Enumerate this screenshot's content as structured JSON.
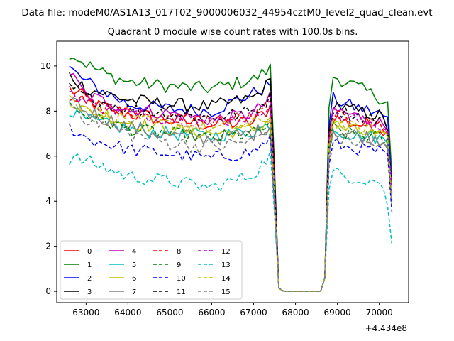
{
  "chart_data": {
    "type": "line",
    "suptitle": "Data file: modeM0/AS1A13_017T02_9000006032_44954cztM0_level2_quad_clean.evt",
    "title": "Quadrant 0 module wise count rates with 100.0s bins.",
    "xlabel": "",
    "ylabel": "",
    "x_offset_label": "+4.434e8",
    "xlim": [
      62300,
      70700
    ],
    "ylim": [
      -0.5,
      11.1
    ],
    "x_ticks": [
      63000,
      64000,
      65000,
      66000,
      67000,
      68000,
      69000,
      70000
    ],
    "x_tick_labels": [
      "63000",
      "64000",
      "65000",
      "66000",
      "67000",
      "68000",
      "69000",
      "70000"
    ],
    "y_ticks": [
      0,
      2,
      4,
      6,
      8,
      10
    ],
    "y_tick_labels": [
      "0",
      "2",
      "4",
      "6",
      "8",
      "10"
    ],
    "grid": false,
    "legend_placement": "lower-left",
    "legend_columns": 4,
    "series": [
      {
        "name": "0",
        "color": "#ff0000",
        "dash": "solid",
        "segA": [
          [
            62600,
            9.0
          ],
          [
            63300,
            8.2
          ],
          [
            64000,
            7.9
          ],
          [
            65000,
            7.6
          ],
          [
            66000,
            7.4
          ],
          [
            67000,
            7.5
          ],
          [
            67400,
            8.2
          ]
        ],
        "segB": [
          [
            68850,
            7.8
          ],
          [
            69200,
            7.5
          ],
          [
            70000,
            7.3
          ],
          [
            70300,
            6.9
          ]
        ],
        "noise": 0.35
      },
      {
        "name": "1",
        "color": "#008000",
        "dash": "solid",
        "segA": [
          [
            62600,
            10.6
          ],
          [
            63000,
            10.1
          ],
          [
            63500,
            9.6
          ],
          [
            64000,
            9.3
          ],
          [
            65000,
            9.1
          ],
          [
            66000,
            9.0
          ],
          [
            67000,
            9.4
          ],
          [
            67400,
            9.9
          ]
        ],
        "segB": [
          [
            68850,
            9.6
          ],
          [
            69200,
            9.3
          ],
          [
            70000,
            8.6
          ],
          [
            70300,
            8.3
          ]
        ],
        "noise": 0.3
      },
      {
        "name": "2",
        "color": "#0000ff",
        "dash": "solid",
        "segA": [
          [
            62600,
            9.9
          ],
          [
            63000,
            9.3
          ],
          [
            64000,
            8.3
          ],
          [
            65000,
            8.1
          ],
          [
            66000,
            8.0
          ],
          [
            67000,
            8.8
          ],
          [
            67400,
            9.2
          ]
        ],
        "segB": [
          [
            68850,
            8.6
          ],
          [
            69200,
            8.3
          ],
          [
            70000,
            7.9
          ],
          [
            70300,
            7.5
          ]
        ],
        "noise": 0.3
      },
      {
        "name": "3",
        "color": "#000000",
        "dash": "solid",
        "segA": [
          [
            62600,
            9.6
          ],
          [
            63000,
            9.0
          ],
          [
            64000,
            8.5
          ],
          [
            65000,
            8.3
          ],
          [
            66000,
            8.2
          ],
          [
            67000,
            8.6
          ],
          [
            67400,
            9.3
          ]
        ],
        "segB": [
          [
            68850,
            8.4
          ],
          [
            69200,
            8.1
          ],
          [
            70000,
            7.8
          ],
          [
            70300,
            7.0
          ]
        ],
        "noise": 0.3
      },
      {
        "name": "4",
        "color": "#c000c0",
        "dash": "solid",
        "segA": [
          [
            62600,
            9.7
          ],
          [
            63000,
            8.7
          ],
          [
            64000,
            8.1
          ],
          [
            65000,
            7.9
          ],
          [
            66000,
            7.6
          ],
          [
            67000,
            7.9
          ],
          [
            67400,
            8.6
          ]
        ],
        "segB": [
          [
            68850,
            8.1
          ],
          [
            69200,
            7.9
          ],
          [
            70000,
            7.5
          ],
          [
            70300,
            7.1
          ]
        ],
        "noise": 0.3
      },
      {
        "name": "5",
        "color": "#00bfbf",
        "dash": "solid",
        "segA": [
          [
            62600,
            8.1
          ],
          [
            63000,
            7.6
          ],
          [
            64000,
            7.2
          ],
          [
            65000,
            7.0
          ],
          [
            66000,
            6.9
          ],
          [
            67000,
            7.1
          ],
          [
            67400,
            7.4
          ]
        ],
        "segB": [
          [
            68850,
            7.3
          ],
          [
            69200,
            7.0
          ],
          [
            70000,
            6.8
          ],
          [
            70300,
            6.5
          ]
        ],
        "noise": 0.3
      },
      {
        "name": "6",
        "color": "#bfbf00",
        "dash": "solid",
        "segA": [
          [
            62600,
            8.5
          ],
          [
            63000,
            8.0
          ],
          [
            64000,
            7.5
          ],
          [
            65000,
            7.2
          ],
          [
            66000,
            7.0
          ],
          [
            67000,
            7.2
          ],
          [
            67400,
            7.6
          ]
        ],
        "segB": [
          [
            68850,
            7.5
          ],
          [
            69200,
            7.2
          ],
          [
            70000,
            6.9
          ],
          [
            70300,
            6.6
          ]
        ],
        "noise": 0.3
      },
      {
        "name": "7",
        "color": "#808080",
        "dash": "solid",
        "segA": [
          [
            62600,
            8.7
          ],
          [
            63000,
            8.0
          ],
          [
            64000,
            7.3
          ],
          [
            65000,
            6.9
          ],
          [
            66000,
            6.8
          ],
          [
            67000,
            7.0
          ],
          [
            67400,
            7.4
          ]
        ],
        "segB": [
          [
            68850,
            7.2
          ],
          [
            69200,
            7.0
          ],
          [
            70000,
            6.8
          ],
          [
            70300,
            6.4
          ]
        ],
        "noise": 0.35
      },
      {
        "name": "8",
        "color": "#ff0000",
        "dash": "dashed",
        "segA": [
          [
            62600,
            8.8
          ],
          [
            63000,
            8.3
          ],
          [
            64000,
            7.9
          ],
          [
            65000,
            7.7
          ],
          [
            66000,
            7.6
          ],
          [
            67000,
            7.7
          ],
          [
            67400,
            8.3
          ]
        ],
        "segB": [
          [
            68850,
            7.9
          ],
          [
            69200,
            7.6
          ],
          [
            70000,
            7.4
          ],
          [
            70300,
            7.0
          ]
        ],
        "noise": 0.3
      },
      {
        "name": "9",
        "color": "#008000",
        "dash": "dashed",
        "segA": [
          [
            62600,
            8.3
          ],
          [
            63000,
            7.8
          ],
          [
            64000,
            7.2
          ],
          [
            65000,
            7.0
          ],
          [
            66000,
            6.8
          ],
          [
            67000,
            7.0
          ],
          [
            67400,
            7.4
          ]
        ],
        "segB": [
          [
            68850,
            7.3
          ],
          [
            69200,
            7.0
          ],
          [
            70000,
            6.8
          ],
          [
            70300,
            6.5
          ]
        ],
        "noise": 0.3
      },
      {
        "name": "10",
        "color": "#0000ff",
        "dash": "dashed",
        "segA": [
          [
            62600,
            7.3
          ],
          [
            63000,
            6.8
          ],
          [
            64000,
            6.3
          ],
          [
            65000,
            6.1
          ],
          [
            66000,
            5.9
          ],
          [
            67000,
            6.2
          ],
          [
            67400,
            6.8
          ]
        ],
        "segB": [
          [
            68850,
            6.6
          ],
          [
            69200,
            6.4
          ],
          [
            70000,
            6.2
          ],
          [
            70300,
            5.7
          ]
        ],
        "noise": 0.3
      },
      {
        "name": "11",
        "color": "#000000",
        "dash": "dashed",
        "segA": [
          [
            62600,
            9.1
          ],
          [
            63000,
            8.6
          ],
          [
            64000,
            8.1
          ],
          [
            65000,
            7.9
          ],
          [
            66000,
            7.7
          ],
          [
            67000,
            8.0
          ],
          [
            67400,
            8.6
          ]
        ],
        "segB": [
          [
            68850,
            8.2
          ],
          [
            69200,
            7.9
          ],
          [
            70000,
            7.6
          ],
          [
            70300,
            7.2
          ]
        ],
        "noise": 0.3
      },
      {
        "name": "12",
        "color": "#c000c0",
        "dash": "dashed",
        "segA": [
          [
            62600,
            8.9
          ],
          [
            63000,
            8.4
          ],
          [
            64000,
            7.9
          ],
          [
            65000,
            7.7
          ],
          [
            66000,
            7.5
          ],
          [
            67000,
            7.8
          ],
          [
            67400,
            8.4
          ]
        ],
        "segB": [
          [
            68850,
            8.0
          ],
          [
            69200,
            7.7
          ],
          [
            70000,
            7.4
          ],
          [
            70300,
            7.0
          ]
        ],
        "noise": 0.3
      },
      {
        "name": "13",
        "color": "#00bfbf",
        "dash": "dashed",
        "segA": [
          [
            62600,
            5.9
          ],
          [
            63000,
            5.8
          ],
          [
            64000,
            5.1
          ],
          [
            65000,
            4.9
          ],
          [
            66000,
            4.6
          ],
          [
            67000,
            5.2
          ],
          [
            67400,
            6.1
          ]
        ],
        "segB": [
          [
            68850,
            5.3
          ],
          [
            69200,
            5.1
          ],
          [
            70000,
            4.9
          ],
          [
            70300,
            3.4
          ]
        ],
        "noise": 0.3
      },
      {
        "name": "14",
        "color": "#bfbf00",
        "dash": "dashed",
        "segA": [
          [
            62600,
            8.6
          ],
          [
            63000,
            8.1
          ],
          [
            64000,
            7.6
          ],
          [
            65000,
            7.4
          ],
          [
            66000,
            7.2
          ],
          [
            67000,
            7.4
          ],
          [
            67400,
            7.8
          ]
        ],
        "segB": [
          [
            68850,
            7.6
          ],
          [
            69200,
            7.3
          ],
          [
            70000,
            7.1
          ],
          [
            70300,
            6.7
          ]
        ],
        "noise": 0.3
      },
      {
        "name": "15",
        "color": "#808080",
        "dash": "dashed",
        "segA": [
          [
            62600,
            8.4
          ],
          [
            63000,
            7.7
          ],
          [
            64000,
            7.0
          ],
          [
            65000,
            6.6
          ],
          [
            66000,
            6.4
          ],
          [
            67000,
            6.7
          ],
          [
            67400,
            7.2
          ]
        ],
        "segB": [
          [
            68850,
            6.9
          ],
          [
            69200,
            6.7
          ],
          [
            70000,
            6.5
          ],
          [
            70300,
            6.1
          ]
        ],
        "noise": 0.35
      }
    ]
  }
}
